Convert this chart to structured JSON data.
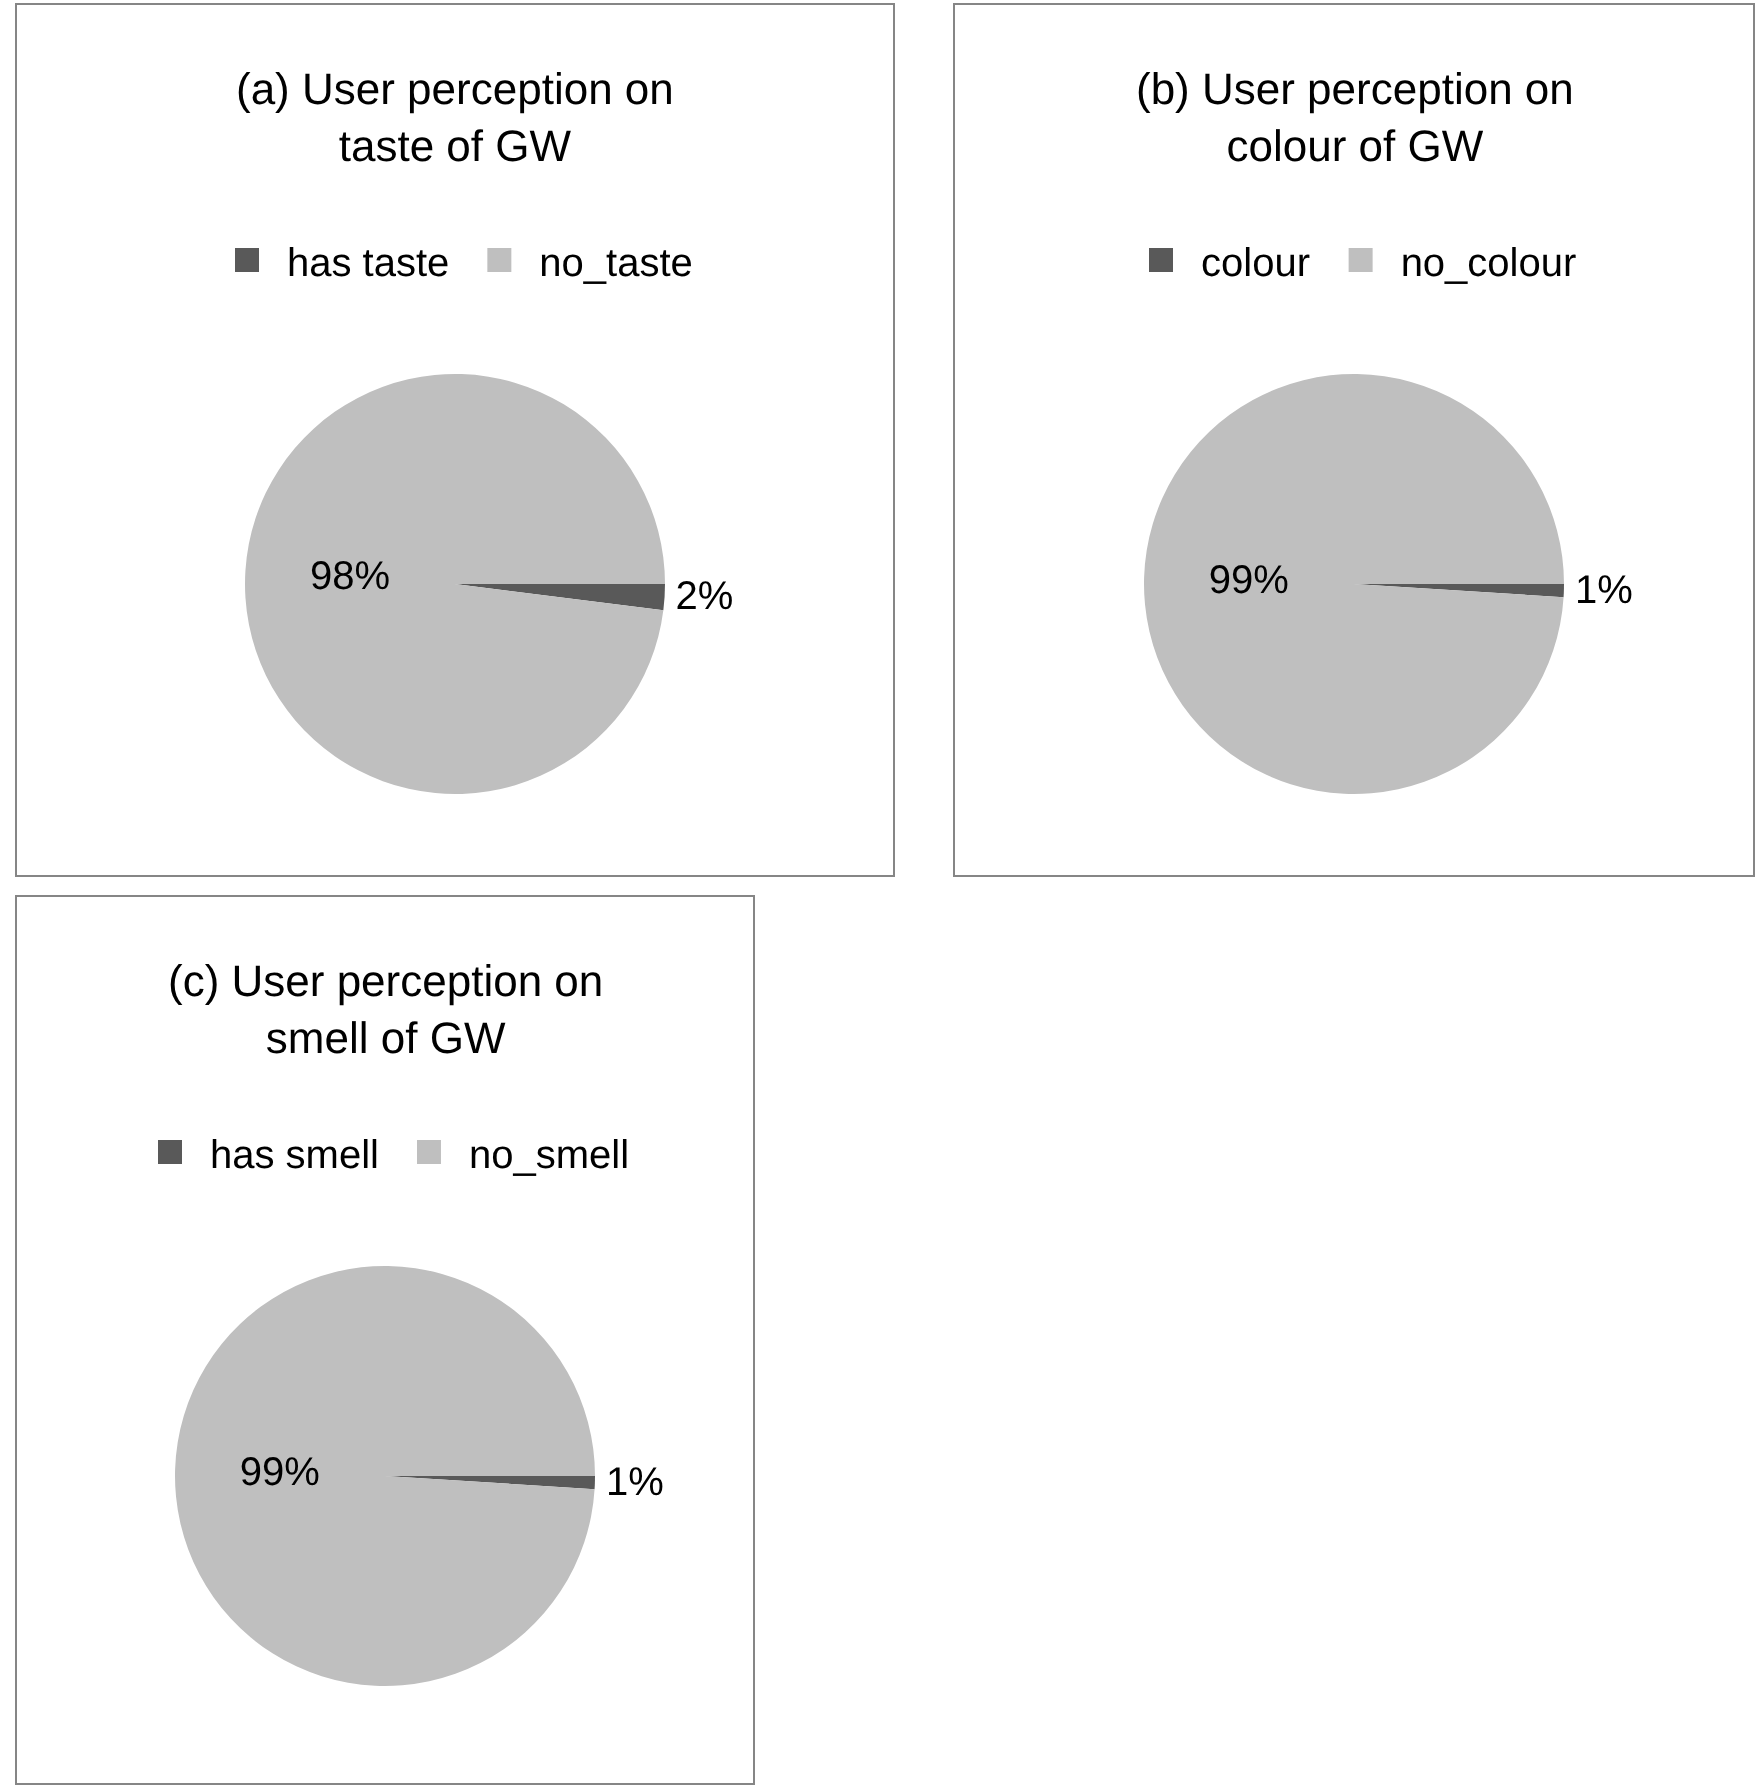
{
  "chart_data": [
    {
      "type": "pie",
      "title": "(a) User perception on\ntaste of GW",
      "categories": [
        "has taste",
        "no_taste"
      ],
      "values": [
        2,
        98
      ],
      "colors": [
        "#595959",
        "#bfbfbf"
      ],
      "value_labels": [
        "2%",
        "98%"
      ],
      "legend": "top"
    },
    {
      "type": "pie",
      "title": "(b) User perception on\ncolour of GW",
      "categories": [
        "colour",
        "no_colour"
      ],
      "values": [
        1,
        99
      ],
      "colors": [
        "#595959",
        "#bfbfbf"
      ],
      "value_labels": [
        "1%",
        "99%"
      ],
      "legend": "top"
    },
    {
      "type": "pie",
      "title": "(c) User perception on\nsmell of GW",
      "categories": [
        "has smell",
        "no_smell"
      ],
      "values": [
        1,
        99
      ],
      "colors": [
        "#595959",
        "#bfbfbf"
      ],
      "value_labels": [
        "1%",
        "99%"
      ],
      "legend": "top"
    }
  ]
}
